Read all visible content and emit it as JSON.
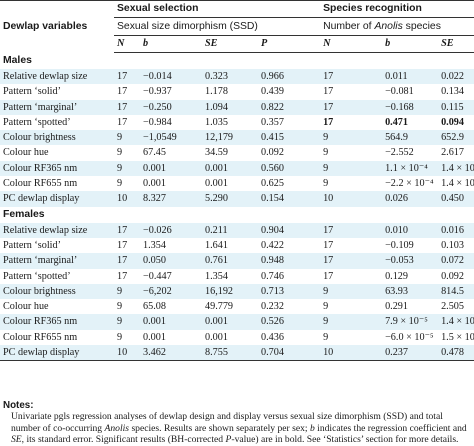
{
  "header": {
    "dewlap_variables": "Dewlap variables",
    "group1_title": "Sexual selection",
    "group1_sub": "Sexual size dimorphism (SSD)",
    "group2_title": "Species recognition",
    "group2_sub_pre": "Number of ",
    "group2_sub_italic": "Anolis",
    "group2_sub_post": " species",
    "cols": [
      "N",
      "b",
      "SE",
      "P",
      "N",
      "b",
      "SE",
      "P"
    ]
  },
  "sections": [
    {
      "label": "Males",
      "rows": [
        {
          "var": "Relative dewlap size",
          "vals": [
            "17",
            "−0.014",
            "0.323",
            "0.966",
            "17",
            "0.011",
            "0.022",
            "0.624"
          ]
        },
        {
          "var": "Pattern ‘solid’",
          "vals": [
            "17",
            "−0.937",
            "1.178",
            "0.439",
            "17",
            "−0.081",
            "0.134",
            "0.554"
          ]
        },
        {
          "var": "Pattern ‘marginal’",
          "vals": [
            "17",
            "−0.250",
            "1.094",
            "0.822",
            "17",
            "−0.168",
            "0.115",
            "0.168"
          ]
        },
        {
          "var": "Pattern ‘spotted’",
          "vals": [
            "17",
            "−0.984",
            "1.035",
            "0.357",
            "17",
            "0.471",
            "0.094",
            "0.001"
          ],
          "sig": [
            false,
            false,
            false,
            false,
            true,
            true,
            true,
            true
          ]
        },
        {
          "var": "Colour brightness",
          "vals": [
            "9",
            "−1,0549",
            "12,179",
            "0.415",
            "9",
            "564.9",
            "652.9",
            "0.416"
          ]
        },
        {
          "var": "Colour hue",
          "vals": [
            "9",
            "67.45",
            "34.59",
            "0.092",
            "9",
            "−2.552",
            "2.617",
            "0.362"
          ]
        },
        {
          "var": "Colour RF365 nm",
          "vals": [
            "9",
            "0.001",
            "0.001",
            "0.560",
            "9",
            "1.1 × 10⁻⁴",
            "1.4 × 10⁻⁴",
            "0.474"
          ]
        },
        {
          "var": "Colour RF655 nm",
          "vals": [
            "9",
            "0.001",
            "0.001",
            "0.625",
            "9",
            "−2.2 × 10⁻⁴",
            "1.4 × 10⁻⁴",
            "0.174"
          ]
        },
        {
          "var": "PC dewlap display",
          "vals": [
            "10",
            "8.327",
            "5.290",
            "0.154",
            "10",
            "0.026",
            "0.450",
            "0.955"
          ]
        }
      ]
    },
    {
      "label": "Females",
      "rows": [
        {
          "var": "Relative dewlap size",
          "vals": [
            "17",
            "−0.026",
            "0.211",
            "0.904",
            "17",
            "0.010",
            "0.016",
            "0.571"
          ]
        },
        {
          "var": "Pattern ‘solid’",
          "vals": [
            "17",
            "1.354",
            "1.641",
            "0.422",
            "17",
            "−0.109",
            "0.103",
            "0.307"
          ]
        },
        {
          "var": "Pattern ‘marginal’",
          "vals": [
            "17",
            "0.050",
            "0.761",
            "0.948",
            "17",
            "−0.053",
            "0.072",
            "0.475"
          ]
        },
        {
          "var": "Pattern ‘spotted’",
          "vals": [
            "17",
            "−0.447",
            "1.354",
            "0.746",
            "17",
            "0.129",
            "0.092",
            "0.181"
          ]
        },
        {
          "var": "Colour brightness",
          "vals": [
            "9",
            "−6,202",
            "16,192",
            "0.713",
            "9",
            "63.93",
            "814.5",
            "0.940"
          ]
        },
        {
          "var": "Colour hue",
          "vals": [
            "9",
            "65.08",
            "49.779",
            "0.232",
            "9",
            "0.291",
            "2.505",
            "0.911"
          ]
        },
        {
          "var": "Colour RF365 nm",
          "vals": [
            "9",
            "0.001",
            "0.001",
            "0.526",
            "9",
            "7.9 × 10⁻⁵",
            "1.4 × 10⁻⁴",
            "0.593"
          ]
        },
        {
          "var": "Colour RF655 nm",
          "vals": [
            "9",
            "0.001",
            "0.001",
            "0.436",
            "9",
            "−6.0 × 10⁻⁵",
            "1.5 × 10⁻⁴",
            "0.700"
          ]
        },
        {
          "var": "PC dewlap display",
          "vals": [
            "10",
            "3.462",
            "8.755",
            "0.704",
            "10",
            "0.237",
            "0.478",
            "0.612"
          ]
        }
      ]
    }
  ],
  "notes": {
    "heading": "Notes:",
    "text": "Univariate pgls regression analyses of dewlap design and display versus sexual size dimorphism (SSD) and total number of co-occurring Anolis species. Results are shown separately per sex; b indicates the regression coefficient and SE, its standard error. Significant results (BH-corrected P-value) are in bold. See ‘Statistics’ section for more details."
  }
}
